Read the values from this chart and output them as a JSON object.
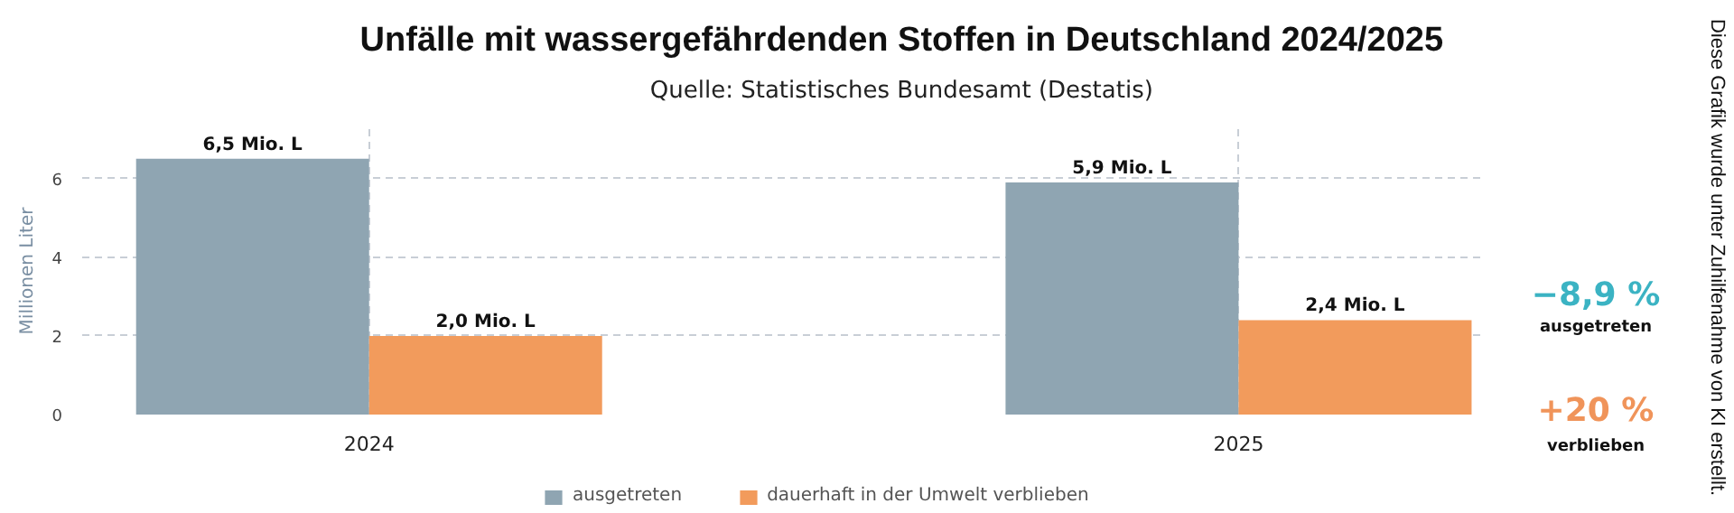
{
  "chart_data": {
    "type": "bar",
    "title": "Unfälle mit wassergefährdenden Stoffen in Deutschland 2024/2025",
    "subtitle": "Quelle: Statistisches Bundesamt (Destatis)",
    "ylabel": "Millionen Liter",
    "categories": [
      "2024",
      "2025"
    ],
    "series": [
      {
        "name": "ausgetreten",
        "color": "#8fa5b2",
        "values": [
          6.5,
          5.9
        ],
        "value_labels": [
          "6,5 Mio. L",
          "5,9 Mio. L"
        ]
      },
      {
        "name": "dauerhaft in der Umwelt verblieben",
        "color": "#f29b5c",
        "values": [
          2.0,
          2.4
        ],
        "value_labels": [
          "2,0 Mio. L",
          "2,4 Mio. L"
        ]
      }
    ],
    "ylim": [
      0,
      7.3
    ],
    "yticks": [
      0,
      2,
      4,
      6
    ],
    "grid": true,
    "legend": "bottom",
    "annotations": [
      "−8,9 %",
      "ausgetreten",
      "+20 %",
      "verblieben",
      "Diese Grafik wurde unter Zuhilfenahme von KI erstellt."
    ]
  }
}
